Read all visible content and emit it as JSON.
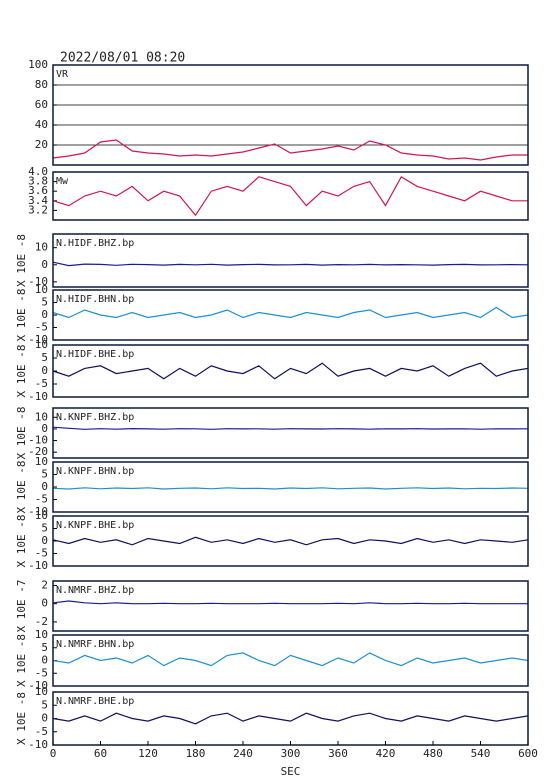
{
  "chart_data": [
    {
      "type": "line",
      "title": "2022/08/01 08:20",
      "label": "VR",
      "color": "#d2145a",
      "grid": true,
      "xlim": [
        0,
        600
      ],
      "ylim": [
        0,
        100
      ],
      "yticks": [
        20,
        40,
        60,
        80,
        100
      ],
      "x": [
        0,
        20,
        40,
        60,
        80,
        100,
        120,
        140,
        160,
        180,
        200,
        220,
        240,
        260,
        280,
        300,
        320,
        340,
        360,
        380,
        400,
        420,
        440,
        460,
        480,
        500,
        520,
        540,
        560,
        580,
        600
      ],
      "values": [
        7,
        9,
        12,
        23,
        25,
        14,
        12,
        11,
        9,
        10,
        9,
        11,
        13,
        17,
        21,
        12,
        14,
        16,
        19,
        15,
        24,
        20,
        12,
        10,
        9,
        6,
        7,
        5,
        8,
        10,
        10
      ]
    },
    {
      "type": "line",
      "label": "Mw",
      "color": "#d2145a",
      "xlim": [
        0,
        600
      ],
      "ylim": [
        3,
        4
      ],
      "yticks": [
        3.2,
        3.4,
        3.6,
        3.8,
        {
          "value": 4,
          "label": "4.0"
        }
      ],
      "x": [
        0,
        20,
        40,
        60,
        80,
        100,
        120,
        140,
        160,
        180,
        200,
        220,
        240,
        260,
        280,
        300,
        320,
        340,
        360,
        380,
        400,
        420,
        440,
        460,
        480,
        500,
        520,
        540,
        560,
        580,
        600
      ],
      "values": [
        3.4,
        3.3,
        3.5,
        3.6,
        3.5,
        3.7,
        3.4,
        3.6,
        3.5,
        3.1,
        3.6,
        3.7,
        3.6,
        3.9,
        3.8,
        3.7,
        3.3,
        3.6,
        3.5,
        3.7,
        3.8,
        3.3,
        3.9,
        3.7,
        3.6,
        3.5,
        3.4,
        3.6,
        3.5,
        3.4,
        3.4
      ]
    },
    {
      "type": "line",
      "label": "N.HIDF.BHZ.bp",
      "ylabel": "X 10E -8",
      "color": "#1a1aa0",
      "xlim": [
        0,
        600
      ],
      "ylim": [
        -13,
        18
      ],
      "yticks": [
        10,
        0,
        -10
      ],
      "x": [
        0,
        20,
        40,
        60,
        80,
        100,
        120,
        140,
        160,
        180,
        200,
        220,
        240,
        260,
        280,
        300,
        320,
        340,
        360,
        380,
        400,
        420,
        440,
        460,
        480,
        500,
        520,
        540,
        560,
        580,
        600
      ],
      "values": [
        1.5,
        -0.5,
        0.4,
        0.2,
        -0.3,
        0.3,
        0.1,
        -0.2,
        0.2,
        0,
        0.3,
        -0.2,
        0.1,
        0.2,
        -0.1,
        0,
        0.2,
        -0.2,
        0.1,
        0,
        0.2,
        -0.1,
        0.1,
        0,
        -0.2,
        0.1,
        0.2,
        -0.1,
        0,
        0.1,
        0
      ]
    },
    {
      "type": "line",
      "label": "N.HIDF.BHN.bp",
      "ylabel": "X 10E -8",
      "color": "#1e90d0",
      "xlim": [
        0,
        600
      ],
      "ylim": [
        -10,
        10
      ],
      "yticks": [
        10,
        5,
        0,
        -5,
        -10
      ],
      "x": [
        0,
        20,
        40,
        60,
        80,
        100,
        120,
        140,
        160,
        180,
        200,
        220,
        240,
        260,
        280,
        300,
        320,
        340,
        360,
        380,
        400,
        420,
        440,
        460,
        480,
        500,
        520,
        540,
        560,
        580,
        600
      ],
      "values": [
        1,
        -1,
        2,
        0,
        -1,
        1,
        -1,
        0,
        1,
        -1,
        0,
        2,
        -1,
        1,
        0,
        -1,
        1,
        0,
        -1,
        1,
        2,
        -1,
        0,
        1,
        -1,
        0,
        1,
        -1,
        3,
        -1,
        0
      ]
    },
    {
      "type": "line",
      "label": "N.HIDF.BHE.bp",
      "ylabel": "X 10E -8",
      "color": "#101060",
      "xlim": [
        0,
        600
      ],
      "ylim": [
        -10,
        10
      ],
      "yticks": [
        10,
        5,
        0,
        -5,
        -10
      ],
      "x": [
        0,
        20,
        40,
        60,
        80,
        100,
        120,
        140,
        160,
        180,
        200,
        220,
        240,
        260,
        280,
        300,
        320,
        340,
        360,
        380,
        400,
        420,
        440,
        460,
        480,
        500,
        520,
        540,
        560,
        580,
        600
      ],
      "values": [
        0,
        -2,
        1,
        2,
        -1,
        0,
        1,
        -3,
        1,
        -2,
        2,
        0,
        -1,
        2,
        -3,
        1,
        -1,
        3,
        -2,
        0,
        1,
        -2,
        1,
        0,
        2,
        -2,
        1,
        3,
        -2,
        0,
        1
      ]
    },
    {
      "type": "line",
      "label": "N.KNPF.BHZ.bp",
      "ylabel": "X 10E -8",
      "color": "#1a1aa0",
      "xlim": [
        0,
        600
      ],
      "ylim": [
        -25,
        18
      ],
      "yticks": [
        10,
        0,
        -10,
        -20
      ],
      "x": [
        0,
        20,
        40,
        60,
        80,
        100,
        120,
        140,
        160,
        180,
        200,
        220,
        240,
        260,
        280,
        300,
        320,
        340,
        360,
        380,
        400,
        420,
        440,
        460,
        480,
        500,
        520,
        540,
        560,
        580,
        600
      ],
      "values": [
        1.5,
        0.5,
        -0.3,
        0.2,
        -0.2,
        0.3,
        0,
        -0.2,
        0.2,
        0.1,
        -0.3,
        0.2,
        0,
        0.1,
        -0.2,
        0.2,
        0,
        -0.1,
        0.2,
        0,
        -0.2,
        0.1,
        0,
        0.2,
        -0.1,
        0,
        0.1,
        -0.2,
        0.1,
        0,
        0.1
      ]
    },
    {
      "type": "line",
      "label": "N.KNPF.BHN.bp",
      "ylabel": "X 10E -8",
      "color": "#1e90d0",
      "xlim": [
        0,
        600
      ],
      "ylim": [
        -10,
        10
      ],
      "yticks": [
        10,
        5,
        0,
        -5,
        -10
      ],
      "x": [
        0,
        20,
        40,
        60,
        80,
        100,
        120,
        140,
        160,
        180,
        200,
        220,
        240,
        260,
        280,
        300,
        320,
        340,
        360,
        380,
        400,
        420,
        440,
        460,
        480,
        500,
        520,
        540,
        560,
        580,
        600
      ],
      "values": [
        -0.5,
        -0.8,
        -0.3,
        -0.7,
        -0.4,
        -0.6,
        -0.3,
        -0.8,
        -0.5,
        -0.4,
        -0.7,
        -0.3,
        -0.6,
        -0.5,
        -0.8,
        -0.4,
        -0.6,
        -0.3,
        -0.7,
        -0.5,
        -0.4,
        -0.8,
        -0.5,
        -0.3,
        -0.6,
        -0.4,
        -0.7,
        -0.5,
        -0.6,
        -0.4,
        -0.5
      ]
    },
    {
      "type": "line",
      "label": "N.KNPF.BHE.bp",
      "ylabel": "X 10E -8",
      "color": "#101060",
      "xlim": [
        0,
        600
      ],
      "ylim": [
        -10,
        10
      ],
      "yticks": [
        10,
        5,
        0,
        -5,
        -10
      ],
      "x": [
        0,
        20,
        40,
        60,
        80,
        100,
        120,
        140,
        160,
        180,
        200,
        220,
        240,
        260,
        280,
        300,
        320,
        340,
        360,
        380,
        400,
        420,
        440,
        460,
        480,
        500,
        520,
        540,
        560,
        580,
        600
      ],
      "values": [
        0.5,
        -1,
        1,
        -0.5,
        0.5,
        -1.5,
        1,
        0,
        -1,
        1.5,
        -0.5,
        0.5,
        -1,
        1,
        -0.5,
        0.5,
        -1.5,
        0.5,
        1,
        -1,
        0.5,
        0,
        -1,
        1,
        -0.5,
        0.5,
        -1,
        0.5,
        0,
        -0.5,
        0.5
      ]
    },
    {
      "type": "line",
      "label": "N.NMRF.BHZ.bp",
      "ylabel": "X 10E -7",
      "color": "#1a1aa0",
      "xlim": [
        0,
        600
      ],
      "ylim": [
        -3,
        2.5
      ],
      "yticks": [
        2,
        0,
        -2
      ],
      "x": [
        0,
        20,
        40,
        60,
        80,
        100,
        120,
        140,
        160,
        180,
        200,
        220,
        240,
        260,
        280,
        300,
        320,
        340,
        360,
        380,
        400,
        420,
        440,
        460,
        480,
        500,
        520,
        540,
        560,
        580,
        600
      ],
      "values": [
        0.1,
        0.3,
        0.1,
        0,
        0.1,
        0,
        0,
        0.05,
        0,
        0,
        0.05,
        0,
        0,
        0,
        0.05,
        0,
        0,
        0,
        0.05,
        0,
        0.1,
        0,
        0,
        0.05,
        0,
        0,
        0.05,
        0,
        0,
        0,
        0
      ]
    },
    {
      "type": "line",
      "label": "N.NMRF.BHN.bp",
      "ylabel": "X 10E -8",
      "color": "#1e90d0",
      "xlim": [
        0,
        600
      ],
      "ylim": [
        -10,
        10
      ],
      "yticks": [
        10,
        5,
        0,
        -5,
        -10
      ],
      "x": [
        0,
        20,
        40,
        60,
        80,
        100,
        120,
        140,
        160,
        180,
        200,
        220,
        240,
        260,
        280,
        300,
        320,
        340,
        360,
        380,
        400,
        420,
        440,
        460,
        480,
        500,
        520,
        540,
        560,
        580,
        600
      ],
      "values": [
        0,
        -1,
        2,
        0,
        1,
        -1,
        2,
        -2,
        1,
        0,
        -2,
        2,
        3,
        0,
        -2,
        2,
        0,
        -2,
        1,
        -1,
        3,
        0,
        -2,
        1,
        -1,
        0,
        1,
        -1,
        0,
        1,
        0
      ]
    },
    {
      "type": "line",
      "label": "N.NMRF.BHE.bp",
      "ylabel": "X 10E -8",
      "color": "#101060",
      "xlim": [
        0,
        600
      ],
      "ylim": [
        -10,
        10
      ],
      "yticks": [
        10,
        5,
        0,
        -5,
        -10
      ],
      "xlabel": "SEC",
      "xticks": [
        0,
        60,
        120,
        180,
        240,
        300,
        360,
        420,
        480,
        540,
        600
      ],
      "x": [
        0,
        20,
        40,
        60,
        80,
        100,
        120,
        140,
        160,
        180,
        200,
        220,
        240,
        260,
        280,
        300,
        320,
        340,
        360,
        380,
        400,
        420,
        440,
        460,
        480,
        500,
        520,
        540,
        560,
        580,
        600
      ],
      "values": [
        0,
        -1,
        1,
        -1,
        2,
        0,
        -1,
        1,
        0,
        -2,
        1,
        2,
        -1,
        1,
        0,
        -1,
        2,
        0,
        -1,
        1,
        2,
        0,
        -1,
        1,
        0,
        -1,
        1,
        0,
        -1,
        0,
        1
      ]
    }
  ]
}
